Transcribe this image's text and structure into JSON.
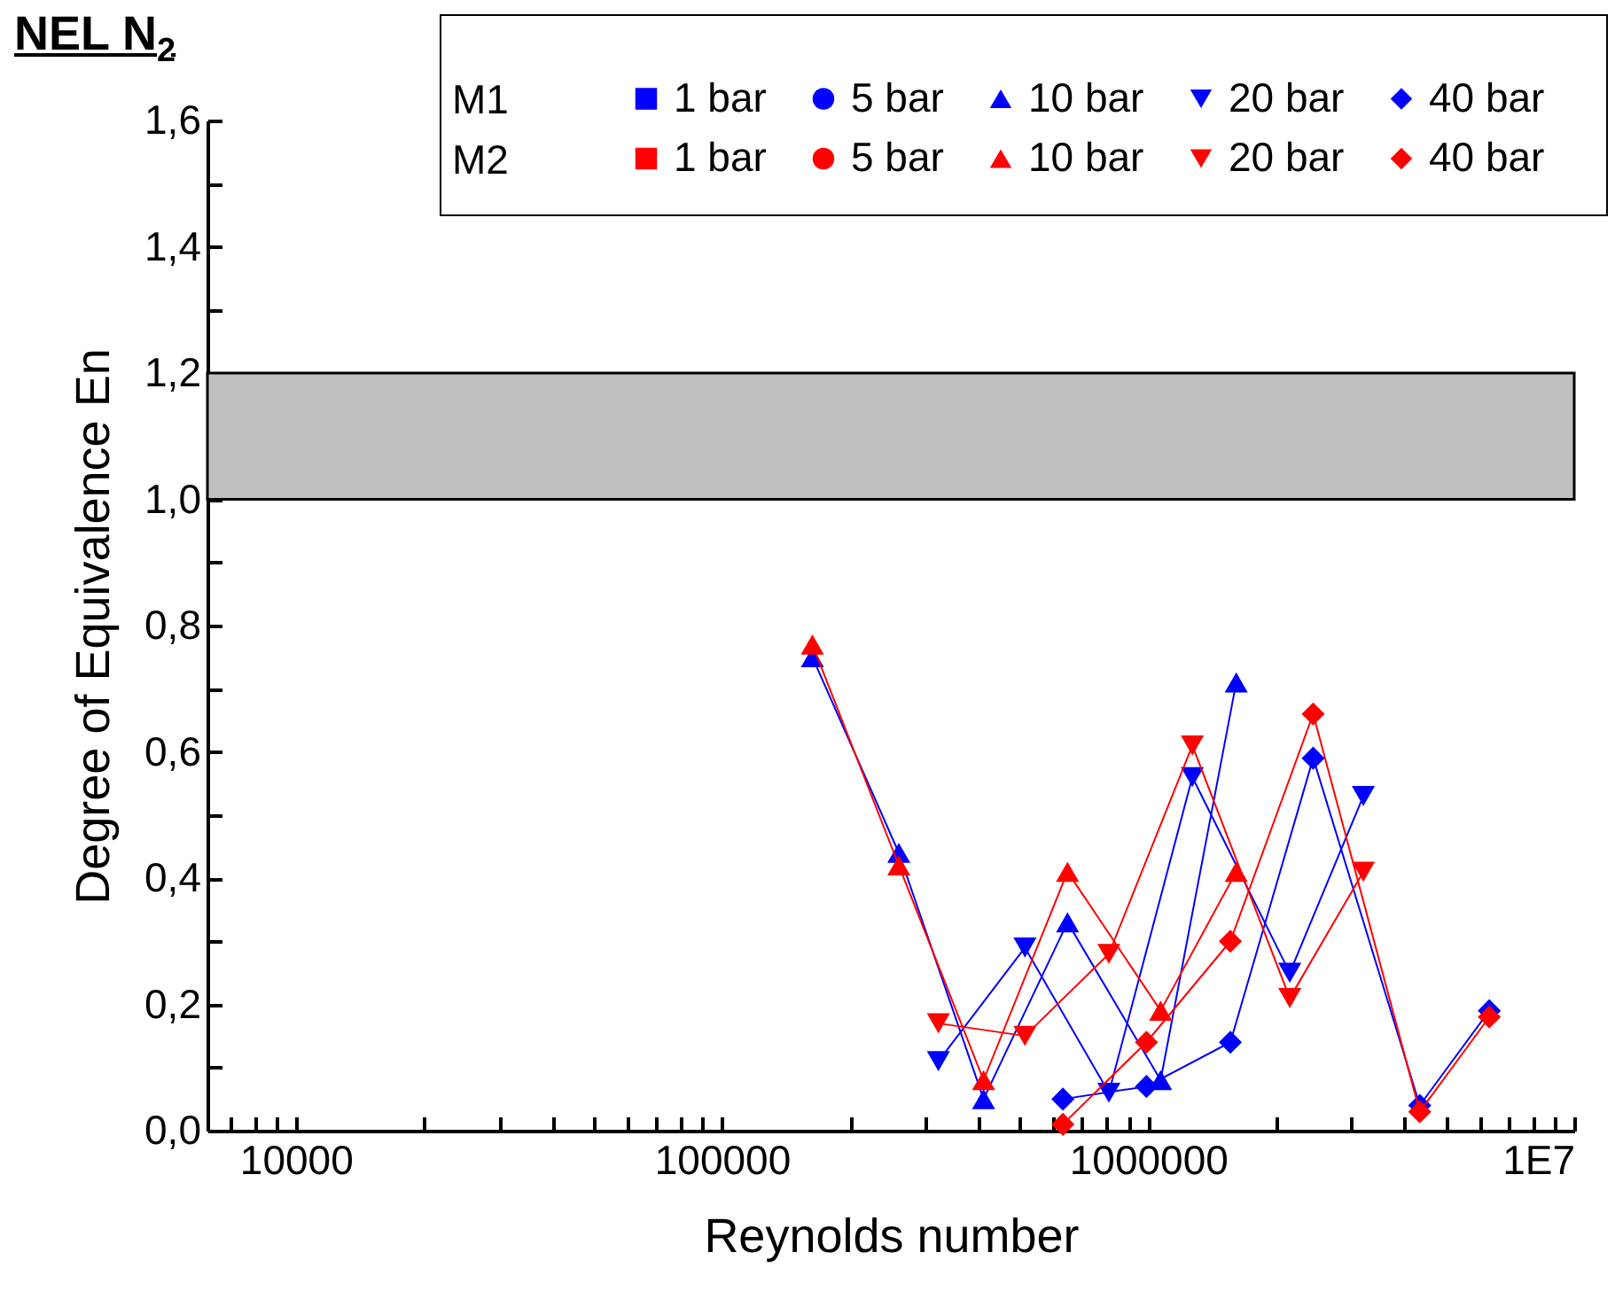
{
  "chart_data": {
    "type": "line",
    "title": "NEL N$_{2}$",
    "xlabel": "Reynolds number",
    "ylabel": "Degree of Equivalence En",
    "annotations": [
      "M1",
      "M2"
    ],
    "log": "x",
    "grid": false,
    "legend": "top right",
    "line_style": "solid",
    "xlim": [
      6200,
      10000000
    ],
    "xticks": [
      {
        "value": 7000,
        "label": null
      },
      {
        "value": 8000,
        "label": null
      },
      {
        "value": 9000,
        "label": null
      },
      10000,
      {
        "value": 20000,
        "label": null
      },
      {
        "value": 30000,
        "label": null
      },
      {
        "value": 40000,
        "label": null
      },
      {
        "value": 50000,
        "label": null
      },
      {
        "value": 60000,
        "label": null
      },
      {
        "value": 70000,
        "label": null
      },
      {
        "value": 80000,
        "label": null
      },
      {
        "value": 90000,
        "label": null
      },
      100000,
      {
        "value": 200000,
        "label": null
      },
      {
        "value": 300000,
        "label": null
      },
      {
        "value": 400000,
        "label": null
      },
      {
        "value": 500000,
        "label": null
      },
      {
        "value": 600000,
        "label": null
      },
      {
        "value": 700000,
        "label": null
      },
      {
        "value": 800000,
        "label": null
      },
      {
        "value": 900000,
        "label": null
      },
      1000000,
      {
        "value": 2000000,
        "label": null
      },
      {
        "value": 3000000,
        "label": null
      },
      {
        "value": 4000000,
        "label": null
      },
      {
        "value": 5000000,
        "label": null
      },
      {
        "value": 6000000,
        "label": null
      },
      {
        "value": 7000000,
        "label": null
      },
      {
        "value": 8000000,
        "label": null
      },
      {
        "value": 9000000,
        "label": null
      },
      {
        "value": 10000000,
        "label": "1E7"
      }
    ],
    "ylim": [
      0,
      1.6
    ],
    "yticks": [
      {
        "value": 0,
        "label": "0,0"
      },
      {
        "value": 0.1,
        "label": null
      },
      {
        "value": 0.2,
        "label": "0,2"
      },
      {
        "value": 0.3,
        "label": null
      },
      {
        "value": 0.4,
        "label": "0,4"
      },
      {
        "value": 0.5,
        "label": null
      },
      {
        "value": 0.6,
        "label": "0,6"
      },
      {
        "value": 0.7,
        "label": null
      },
      {
        "value": 0.8,
        "label": "0,8"
      },
      {
        "value": 0.9,
        "label": null
      },
      {
        "value": 1.0,
        "label": "1,0"
      },
      {
        "value": 1.1,
        "label": null
      },
      {
        "value": 1.2,
        "label": "1,2"
      },
      {
        "value": 1.3,
        "label": null
      },
      {
        "value": 1.4,
        "label": "1,4"
      },
      {
        "value": 1.5,
        "label": null
      },
      {
        "value": 1.6,
        "label": "1,6"
      }
    ],
    "bands": [
      {
        "axis": "y",
        "from": 1.0,
        "to": 1.2,
        "color": "#c0c0c0"
      }
    ],
    "series": [
      {
        "name": "1 bar",
        "color": "#0000ff",
        "marker": "square"
      },
      {
        "name": "5 bar",
        "color": "#0000ff",
        "marker": "circle"
      },
      {
        "name": "10 bar",
        "color": "#0000ff",
        "marker": "triangle",
        "x": [
          163000,
          260000,
          411000,
          647000,
          1070000,
          1610000
        ],
        "values": [
          0.75,
          0.44,
          0.05,
          0.33,
          0.08,
          0.71
        ]
      },
      {
        "name": "20 bar",
        "color": "#0000ff",
        "marker": "triangle-down",
        "x": [
          322000,
          514000,
          809000,
          1270000,
          2150000,
          3200000
        ],
        "values": [
          0.11,
          0.29,
          0.06,
          0.56,
          0.25,
          0.53
        ]
      },
      {
        "name": "40 bar",
        "color": "#0000ff",
        "marker": "diamond",
        "x": [
          631000,
          991000,
          1560000,
          2440000,
          4340000,
          6320000
        ],
        "values": [
          0.05,
          0.07,
          0.14,
          0.59,
          0.04,
          0.19
        ]
      },
      {
        "name": "1 bar",
        "color": "#ff0000",
        "marker": "square"
      },
      {
        "name": "5 bar",
        "color": "#ff0000",
        "marker": "circle"
      },
      {
        "name": "10 bar",
        "color": "#ff0000",
        "marker": "triangle",
        "x": [
          163000,
          260000,
          411000,
          647000,
          1070000,
          1610000
        ],
        "values": [
          0.77,
          0.42,
          0.08,
          0.41,
          0.19,
          0.41
        ]
      },
      {
        "name": "20 bar",
        "color": "#ff0000",
        "marker": "triangle-down",
        "x": [
          322000,
          514000,
          809000,
          1270000,
          2150000,
          3200000
        ],
        "values": [
          0.17,
          0.15,
          0.28,
          0.61,
          0.21,
          0.41
        ]
      },
      {
        "name": "40 bar",
        "color": "#ff0000",
        "marker": "diamond",
        "x": [
          631000,
          991000,
          1560000,
          2440000,
          4340000,
          6320000
        ],
        "values": [
          0.01,
          0.14,
          0.3,
          0.66,
          0.03,
          0.18
        ]
      }
    ]
  }
}
